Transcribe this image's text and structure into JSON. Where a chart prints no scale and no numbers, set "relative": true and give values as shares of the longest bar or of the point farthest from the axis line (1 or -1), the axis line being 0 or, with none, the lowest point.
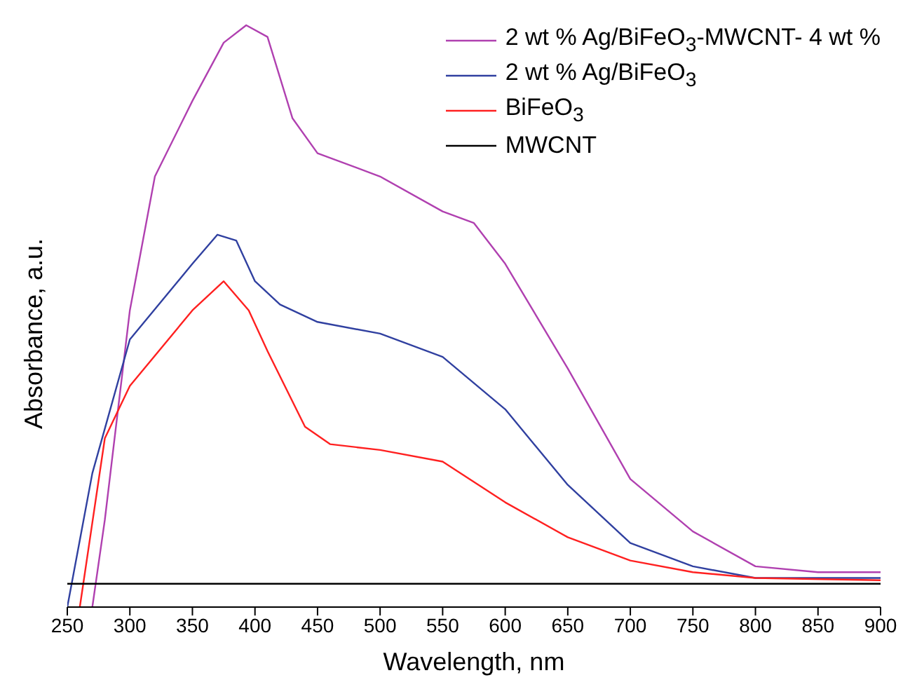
{
  "chart_data": {
    "type": "line",
    "relative": true,
    "xlabel": "Wavelength, nm",
    "ylabel": "Absorbance, a.u.",
    "xlim": [
      250,
      900
    ],
    "xticks": [
      250,
      300,
      350,
      400,
      450,
      500,
      550,
      600,
      650,
      700,
      750,
      800,
      850,
      900
    ],
    "legend": "top right",
    "line_style": "solid",
    "series": [
      {
        "name": "2 wt % Ag/BiFeO$_{3}$-MWCNT- 4 wt %",
        "color": "#b040b0",
        "x": [
          270,
          280,
          300,
          320,
          350,
          375,
          393,
          410,
          430,
          450,
          500,
          550,
          575,
          600,
          650,
          700,
          750,
          800,
          850,
          900
        ],
        "values": [
          0,
          0.15,
          0.51,
          0.74,
          0.87,
          0.97,
          1,
          0.98,
          0.84,
          0.78,
          0.74,
          0.68,
          0.66,
          0.59,
          0.41,
          0.22,
          0.13,
          0.07,
          0.06,
          0.06
        ]
      },
      {
        "name": "2 wt % Ag/BiFeO$_{3}$",
        "color": "#3040a0",
        "x": [
          250,
          270,
          300,
          350,
          370,
          385,
          400,
          420,
          450,
          500,
          550,
          600,
          650,
          700,
          750,
          800,
          900
        ],
        "values": [
          0,
          0.23,
          0.46,
          0.59,
          0.64,
          0.63,
          0.56,
          0.52,
          0.49,
          0.47,
          0.43,
          0.34,
          0.21,
          0.11,
          0.07,
          0.05,
          0.05
        ]
      },
      {
        "name": "BiFeO$_{3}$",
        "color": "#ff2020",
        "x": [
          260,
          280,
          300,
          350,
          375,
          395,
          410,
          440,
          460,
          500,
          550,
          600,
          650,
          700,
          750,
          800,
          900
        ],
        "values": [
          0,
          0.29,
          0.38,
          0.51,
          0.56,
          0.51,
          0.44,
          0.31,
          0.28,
          0.27,
          0.25,
          0.18,
          0.12,
          0.08,
          0.06,
          0.05,
          0.046
        ]
      },
      {
        "name": "MWCNT",
        "color": "#000000",
        "x": [
          250,
          900
        ],
        "values": [
          0.04,
          0.04
        ]
      }
    ]
  }
}
